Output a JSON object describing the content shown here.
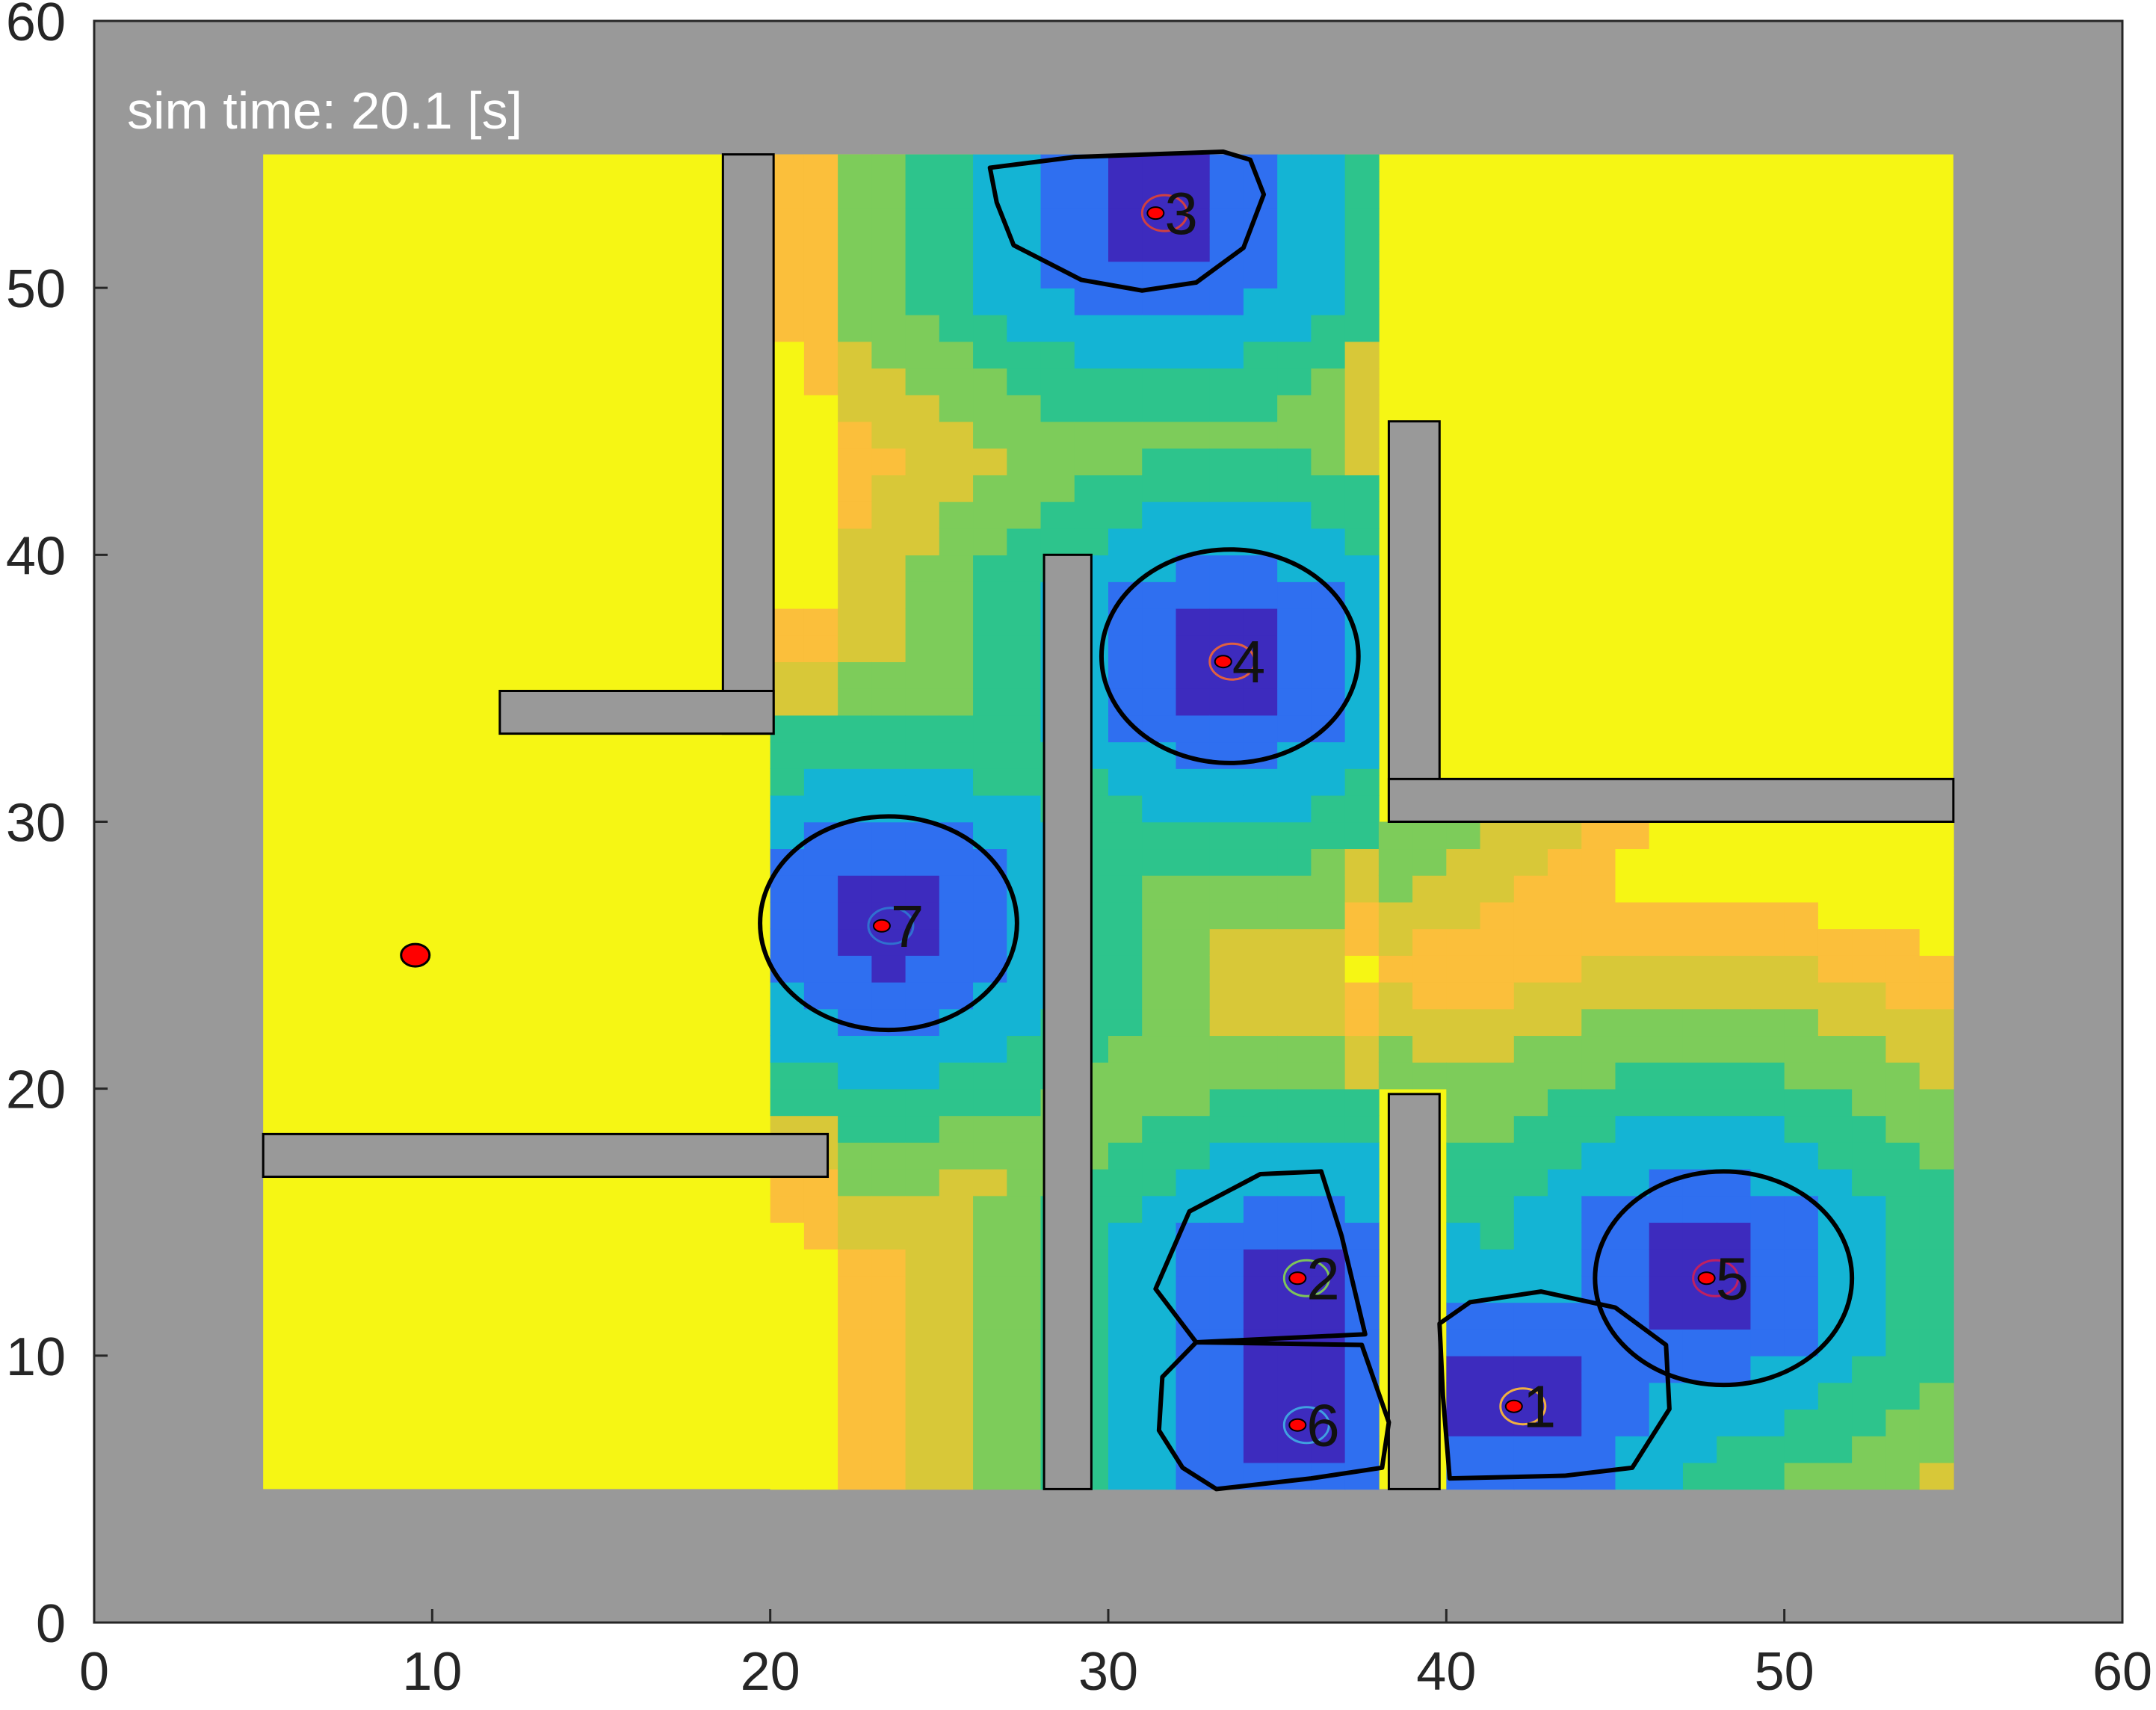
{
  "chart_data": {
    "type": "heatmap",
    "title": "",
    "xlabel": "",
    "ylabel": "",
    "xlim": [
      0,
      60
    ],
    "ylim": [
      0,
      60
    ],
    "x_ticks": [
      "0",
      "10",
      "20",
      "30",
      "40",
      "50",
      "60"
    ],
    "y_ticks": [
      "0",
      "10",
      "20",
      "30",
      "40",
      "50",
      "60"
    ],
    "annotation": "sim time: 20.1 [s]",
    "colors": {
      "wall": "#999999",
      "free_space": "#f6f614",
      "colormap": [
        "#3d2bbe",
        "#2f6ff0",
        "#14b4d4",
        "#2dc48c",
        "#7dcc5a",
        "#d8c838",
        "#fbbf3b",
        "#f6f614"
      ],
      "agent": "#ff0000",
      "boundary": "#000000"
    },
    "walls": [
      {
        "x0": 0,
        "x1": 60,
        "y0": 0,
        "y1": 60
      },
      {
        "x0": 18.6,
        "x1": 20.1,
        "y0": 33.3,
        "y1": 55
      },
      {
        "x0": 12,
        "x1": 20.1,
        "y0": 33.3,
        "y1": 34.9
      },
      {
        "x0": 28.1,
        "x1": 29.5,
        "y0": 5,
        "y1": 40
      },
      {
        "x0": 38.3,
        "x1": 39.8,
        "y0": 30,
        "y1": 45
      },
      {
        "x0": 38.3,
        "x1": 55,
        "y0": 30,
        "y1": 31.6
      },
      {
        "x0": 38.3,
        "x1": 39.8,
        "y0": 5,
        "y1": 19.8
      },
      {
        "x0": 5,
        "x1": 21.7,
        "y0": 16.7,
        "y1": 18.3
      }
    ],
    "rooms": [
      {
        "x0": 5,
        "x1": 28.1,
        "y0": 5,
        "y1": 55
      },
      {
        "x0": 20.1,
        "x1": 55,
        "y0": 5,
        "y1": 55
      }
    ],
    "colored_regions": [
      {
        "x0": 20.3,
        "x1": 38.3,
        "y0": 5,
        "y1": 55
      },
      {
        "x0": 39.8,
        "x1": 55,
        "y0": 5,
        "y1": 30
      },
      {
        "x0": 38.3,
        "x1": 39.8,
        "y0": 19.8,
        "y1": 30
      }
    ],
    "field_peaks": [
      {
        "x": 31.5,
        "y": 52.8
      },
      {
        "x": 23.5,
        "y": 26.3
      },
      {
        "x": 33.5,
        "y": 36
      },
      {
        "x": 35.5,
        "y": 12
      },
      {
        "x": 35.5,
        "y": 7.8
      },
      {
        "x": 42,
        "y": 8.5
      },
      {
        "x": 47.5,
        "y": 13
      }
    ],
    "agents": [
      {
        "label": "1",
        "x": 42,
        "y": 8.1,
        "ring_color": "#f0b040",
        "cell": [
          [
            40.1,
            5.4
          ],
          [
            43.5,
            5.5
          ],
          [
            45.5,
            5.8
          ],
          [
            46.6,
            8
          ],
          [
            46.5,
            10.4
          ],
          [
            45,
            11.8
          ],
          [
            42.8,
            12.4
          ],
          [
            40.7,
            12
          ],
          [
            39.8,
            11.2
          ],
          [
            39.9,
            8.5
          ]
        ]
      },
      {
        "label": "2",
        "x": 35.6,
        "y": 12.9,
        "ring_color": "#7dc45a",
        "cell": [
          [
            32.6,
            10.5
          ],
          [
            37.6,
            10.8
          ],
          [
            36.9,
            14.5
          ],
          [
            36.3,
            16.9
          ],
          [
            34.5,
            16.8
          ],
          [
            32.4,
            15.4
          ],
          [
            31.4,
            12.5
          ]
        ]
      },
      {
        "label": "3",
        "x": 31.4,
        "y": 52.8,
        "ring_color": "#d04040",
        "cell": [
          [
            26.5,
            54.5
          ],
          [
            29,
            54.9
          ],
          [
            33.4,
            55.1
          ],
          [
            34.2,
            54.8
          ],
          [
            34.6,
            53.5
          ],
          [
            34,
            51.5
          ],
          [
            32.6,
            50.2
          ],
          [
            31,
            49.9
          ],
          [
            29.2,
            50.3
          ],
          [
            27.2,
            51.6
          ],
          [
            26.7,
            53.2
          ]
        ]
      },
      {
        "label": "4",
        "x": 33.4,
        "y": 36,
        "ring_color": "#e06040",
        "cell": "ellipse",
        "cx": 33.6,
        "cy": 36.2,
        "rx": 3.8,
        "ry": 4.0
      },
      {
        "label": "5",
        "x": 47.7,
        "y": 12.9,
        "ring_color": "#c02060",
        "cell": "ellipse",
        "cx": 48.2,
        "cy": 12.9,
        "rx": 3.8,
        "ry": 4.0
      },
      {
        "label": "6",
        "x": 35.6,
        "y": 7.4,
        "ring_color": "#40a0e0",
        "cell": [
          [
            33.2,
            5.0
          ],
          [
            36,
            5.4
          ],
          [
            38.1,
            5.8
          ],
          [
            38.3,
            7.5
          ],
          [
            37.5,
            10.4
          ],
          [
            32.6,
            10.5
          ],
          [
            31.6,
            9.2
          ],
          [
            31.5,
            7.2
          ],
          [
            32.2,
            5.8
          ]
        ]
      },
      {
        "label": "7",
        "x": 23.3,
        "y": 26.1,
        "ring_color": "#3070d0",
        "cell": "ellipse",
        "cx": 23.5,
        "cy": 26.2,
        "rx": 3.8,
        "ry": 4.0
      }
    ],
    "goal_marker": {
      "x": 9.5,
      "y": 25,
      "color": "#ff0000"
    }
  }
}
